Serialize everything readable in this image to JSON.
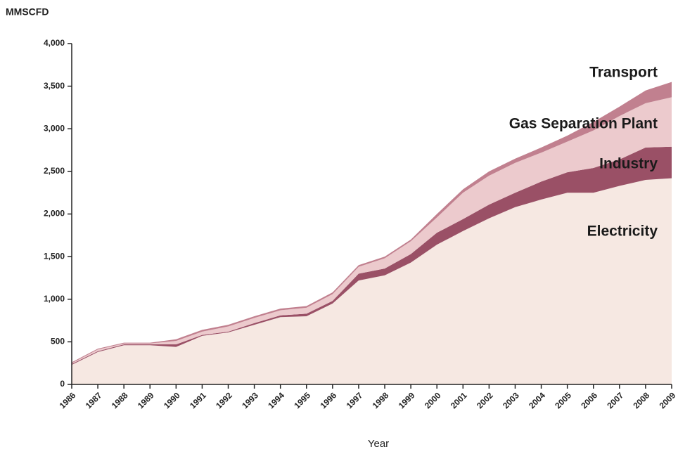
{
  "chart_data": {
    "type": "stacked_area",
    "y_label": "MMSCFD",
    "x_label": "Year",
    "categories": [
      "1986",
      "1987",
      "1988",
      "1989",
      "1990",
      "1991",
      "1992",
      "1993",
      "1994",
      "1995",
      "1996",
      "1997",
      "1998",
      "1999",
      "2000",
      "2001",
      "2002",
      "2003",
      "2004",
      "2005",
      "2006",
      "2007",
      "2008",
      "2009"
    ],
    "series": [
      {
        "name": "Electricity",
        "color": "#f6e8e2",
        "values": [
          230,
          380,
          460,
          460,
          440,
          570,
          610,
          700,
          790,
          800,
          950,
          1220,
          1280,
          1430,
          1640,
          1800,
          1950,
          2080,
          2170,
          2250,
          2250,
          2330,
          2400,
          2420
        ]
      },
      {
        "name": "Industry",
        "color": "#9a5066",
        "values": [
          10,
          10,
          10,
          10,
          30,
          10,
          10,
          20,
          20,
          30,
          30,
          80,
          80,
          100,
          140,
          140,
          160,
          170,
          210,
          240,
          290,
          310,
          380,
          370
        ]
      },
      {
        "name": "Gas Separation Plant",
        "color": "#eccacd",
        "values": [
          10,
          20,
          10,
          10,
          40,
          40,
          60,
          60,
          60,
          70,
          80,
          80,
          120,
          150,
          180,
          310,
          340,
          350,
          340,
          360,
          440,
          510,
          520,
          580
        ]
      },
      {
        "name": "Transport",
        "color": "#c1808f",
        "values": [
          10,
          10,
          10,
          10,
          20,
          20,
          20,
          20,
          20,
          20,
          20,
          20,
          20,
          20,
          40,
          40,
          50,
          50,
          60,
          70,
          100,
          110,
          150,
          180
        ]
      }
    ],
    "ylim": [
      0,
      4000
    ],
    "yticks": [
      0,
      500,
      {
        "value": 1000,
        "label": "1,000"
      },
      {
        "value": 1500,
        "label": "1,500"
      },
      {
        "value": 2000,
        "label": "2,000"
      },
      {
        "value": 2500,
        "label": "2,500"
      },
      {
        "value": 3000,
        "label": "3,000"
      },
      {
        "value": 3500,
        "label": "3,500"
      },
      {
        "value": 4000,
        "label": "4,000"
      }
    ]
  }
}
